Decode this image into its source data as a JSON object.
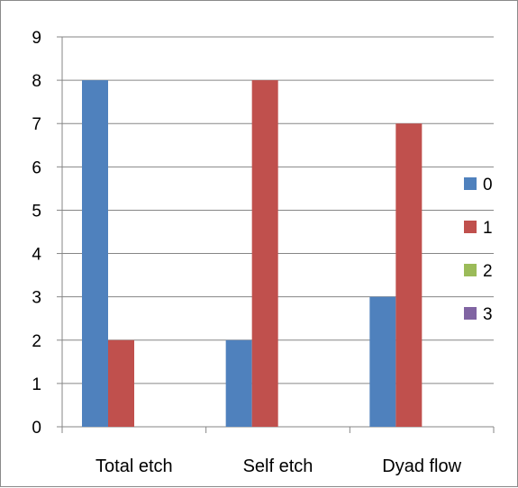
{
  "chart_data": {
    "type": "bar",
    "title": "",
    "xlabel": "",
    "ylabel": "",
    "categories": [
      "Total etch",
      "Self etch",
      "Dyad flow"
    ],
    "series": [
      {
        "name": "0",
        "values": [
          8,
          2,
          3
        ],
        "color": "#4F81BD"
      },
      {
        "name": "1",
        "values": [
          2,
          8,
          7
        ],
        "color": "#C0504D"
      },
      {
        "name": "2",
        "values": [
          0,
          0,
          0
        ],
        "color": "#9BBB59"
      },
      {
        "name": "3",
        "values": [
          0,
          0,
          0
        ],
        "color": "#8064A2"
      }
    ],
    "ylim": [
      0,
      9
    ],
    "yticks": [
      0,
      1,
      2,
      3,
      4,
      5,
      6,
      7,
      8,
      9
    ],
    "grid": true,
    "legend_position": "right"
  }
}
